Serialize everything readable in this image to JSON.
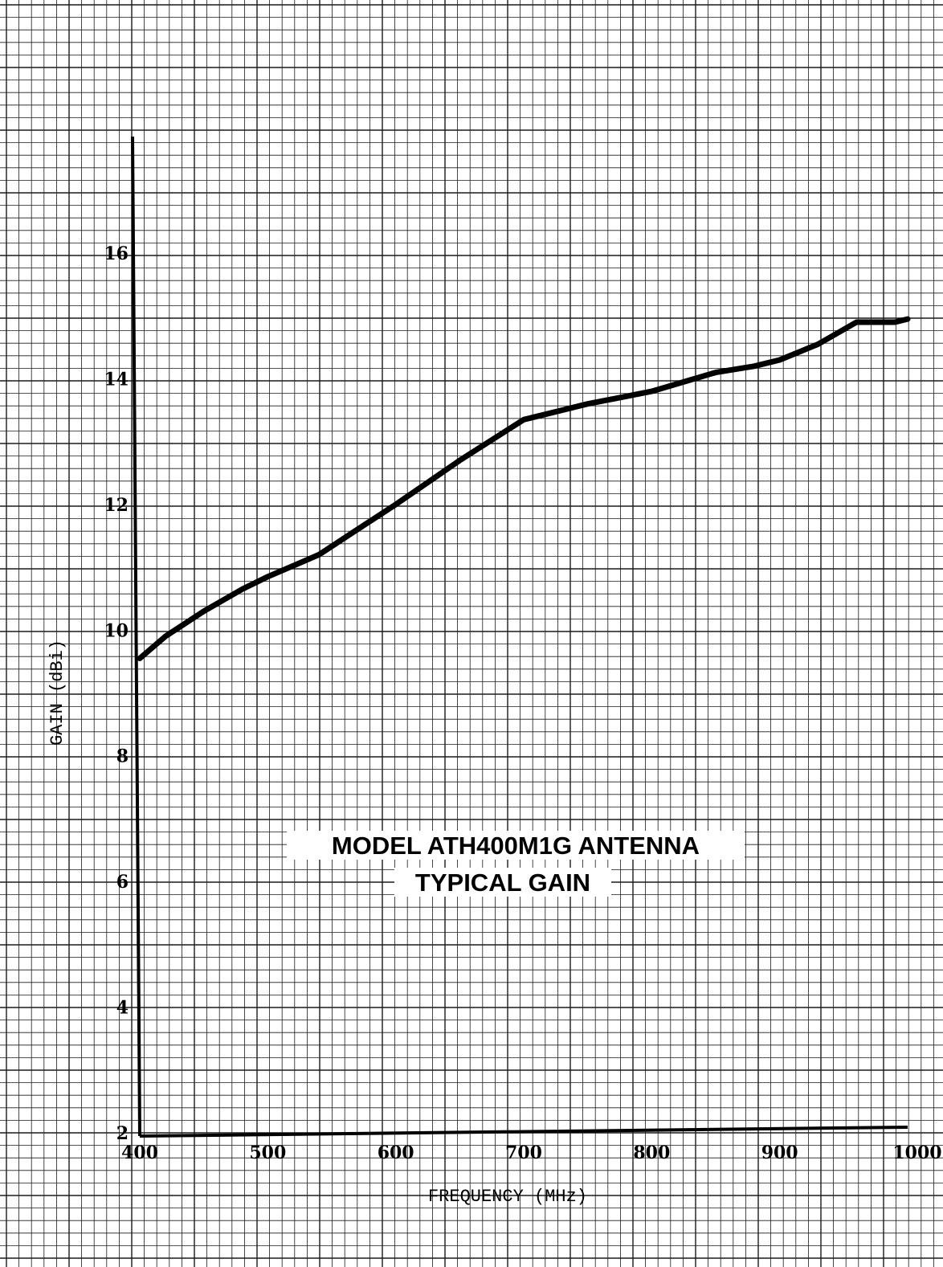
{
  "chart_data": {
    "type": "line",
    "title": [
      "MODEL ATH400M1G ANTENNA",
      "TYPICAL GAIN"
    ],
    "xlabel": "FREQUENCY (MHz)",
    "ylabel": "GAIN (dBi)",
    "xlim": [
      400,
      1000
    ],
    "ylim": [
      2,
      16
    ],
    "xticks": [
      "400",
      "500",
      "600",
      "700",
      "800",
      "900",
      "1000"
    ],
    "yticks": [
      "2",
      "4",
      "6",
      "8",
      "10",
      "12",
      "14",
      "16"
    ],
    "grid": true,
    "series": [
      {
        "x": [
          400,
          420,
          450,
          480,
          500,
          540,
          570,
          600,
          650,
          700,
          750,
          800,
          850,
          880,
          900,
          930,
          960,
          990,
          1000
        ],
        "y": [
          9.55,
          9.9,
          10.3,
          10.65,
          10.85,
          11.2,
          11.6,
          12.0,
          12.7,
          13.35,
          13.6,
          13.8,
          14.1,
          14.2,
          14.3,
          14.55,
          14.9,
          14.9,
          14.95
        ]
      }
    ],
    "colors": {
      "line": "#000000",
      "grid": "#1a1a1a"
    }
  }
}
